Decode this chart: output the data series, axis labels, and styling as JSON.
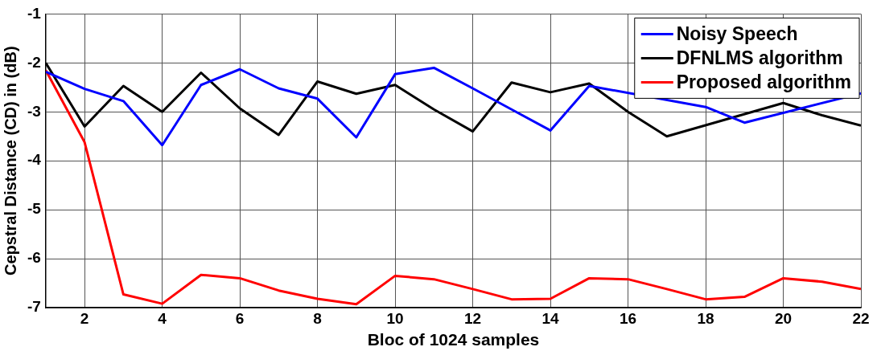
{
  "chart_data": {
    "type": "line",
    "xlabel": "Bloc of 1024 samples",
    "ylabel": "Cepstral Distance (CD) in (dB)",
    "x": [
      1,
      2,
      3,
      4,
      5,
      6,
      7,
      8,
      9,
      10,
      11,
      12,
      13,
      14,
      15,
      16,
      17,
      18,
      19,
      20,
      21,
      22
    ],
    "xlim": [
      1,
      22
    ],
    "xticks": [
      2,
      4,
      6,
      8,
      10,
      12,
      14,
      16,
      18,
      20,
      22
    ],
    "ylim": [
      -7,
      -1
    ],
    "yticks": [
      -7,
      -6,
      -5,
      -4,
      -3,
      -2,
      -1
    ],
    "grid": true,
    "legend": "top right",
    "marker": "none",
    "line_style": "solid",
    "series": [
      {
        "name": "Noisy Speech",
        "color": "#0000ff",
        "values": [
          -2.18,
          -2.53,
          -2.78,
          -3.68,
          -2.45,
          -2.13,
          -2.52,
          -2.73,
          -3.52,
          -2.23,
          -2.1,
          -2.52,
          -2.95,
          -3.38,
          -2.47,
          null,
          null,
          -2.9,
          -3.22,
          null,
          null,
          -2.62
        ]
      },
      {
        "name": "DFNLMS algorithm",
        "color": "#000000",
        "values": [
          -2.0,
          -3.3,
          -2.47,
          -3.0,
          -2.2,
          -2.93,
          -3.47,
          -2.38,
          -2.63,
          -2.45,
          -2.95,
          -3.4,
          -2.4,
          -2.6,
          -2.42,
          -3.0,
          -3.5,
          null,
          null,
          -2.82,
          -3.07,
          -3.28
        ]
      },
      {
        "name": "Proposed algorithm",
        "color": "#ff0000",
        "values": [
          -2.15,
          -3.62,
          -6.73,
          -6.92,
          -6.33,
          -6.4,
          -6.65,
          -6.82,
          -6.93,
          -6.35,
          -6.42,
          -6.62,
          -6.83,
          -6.82,
          -6.4,
          -6.42,
          -6.62,
          -6.83,
          -6.78,
          -6.4,
          -6.47,
          -6.62
        ]
      }
    ]
  }
}
